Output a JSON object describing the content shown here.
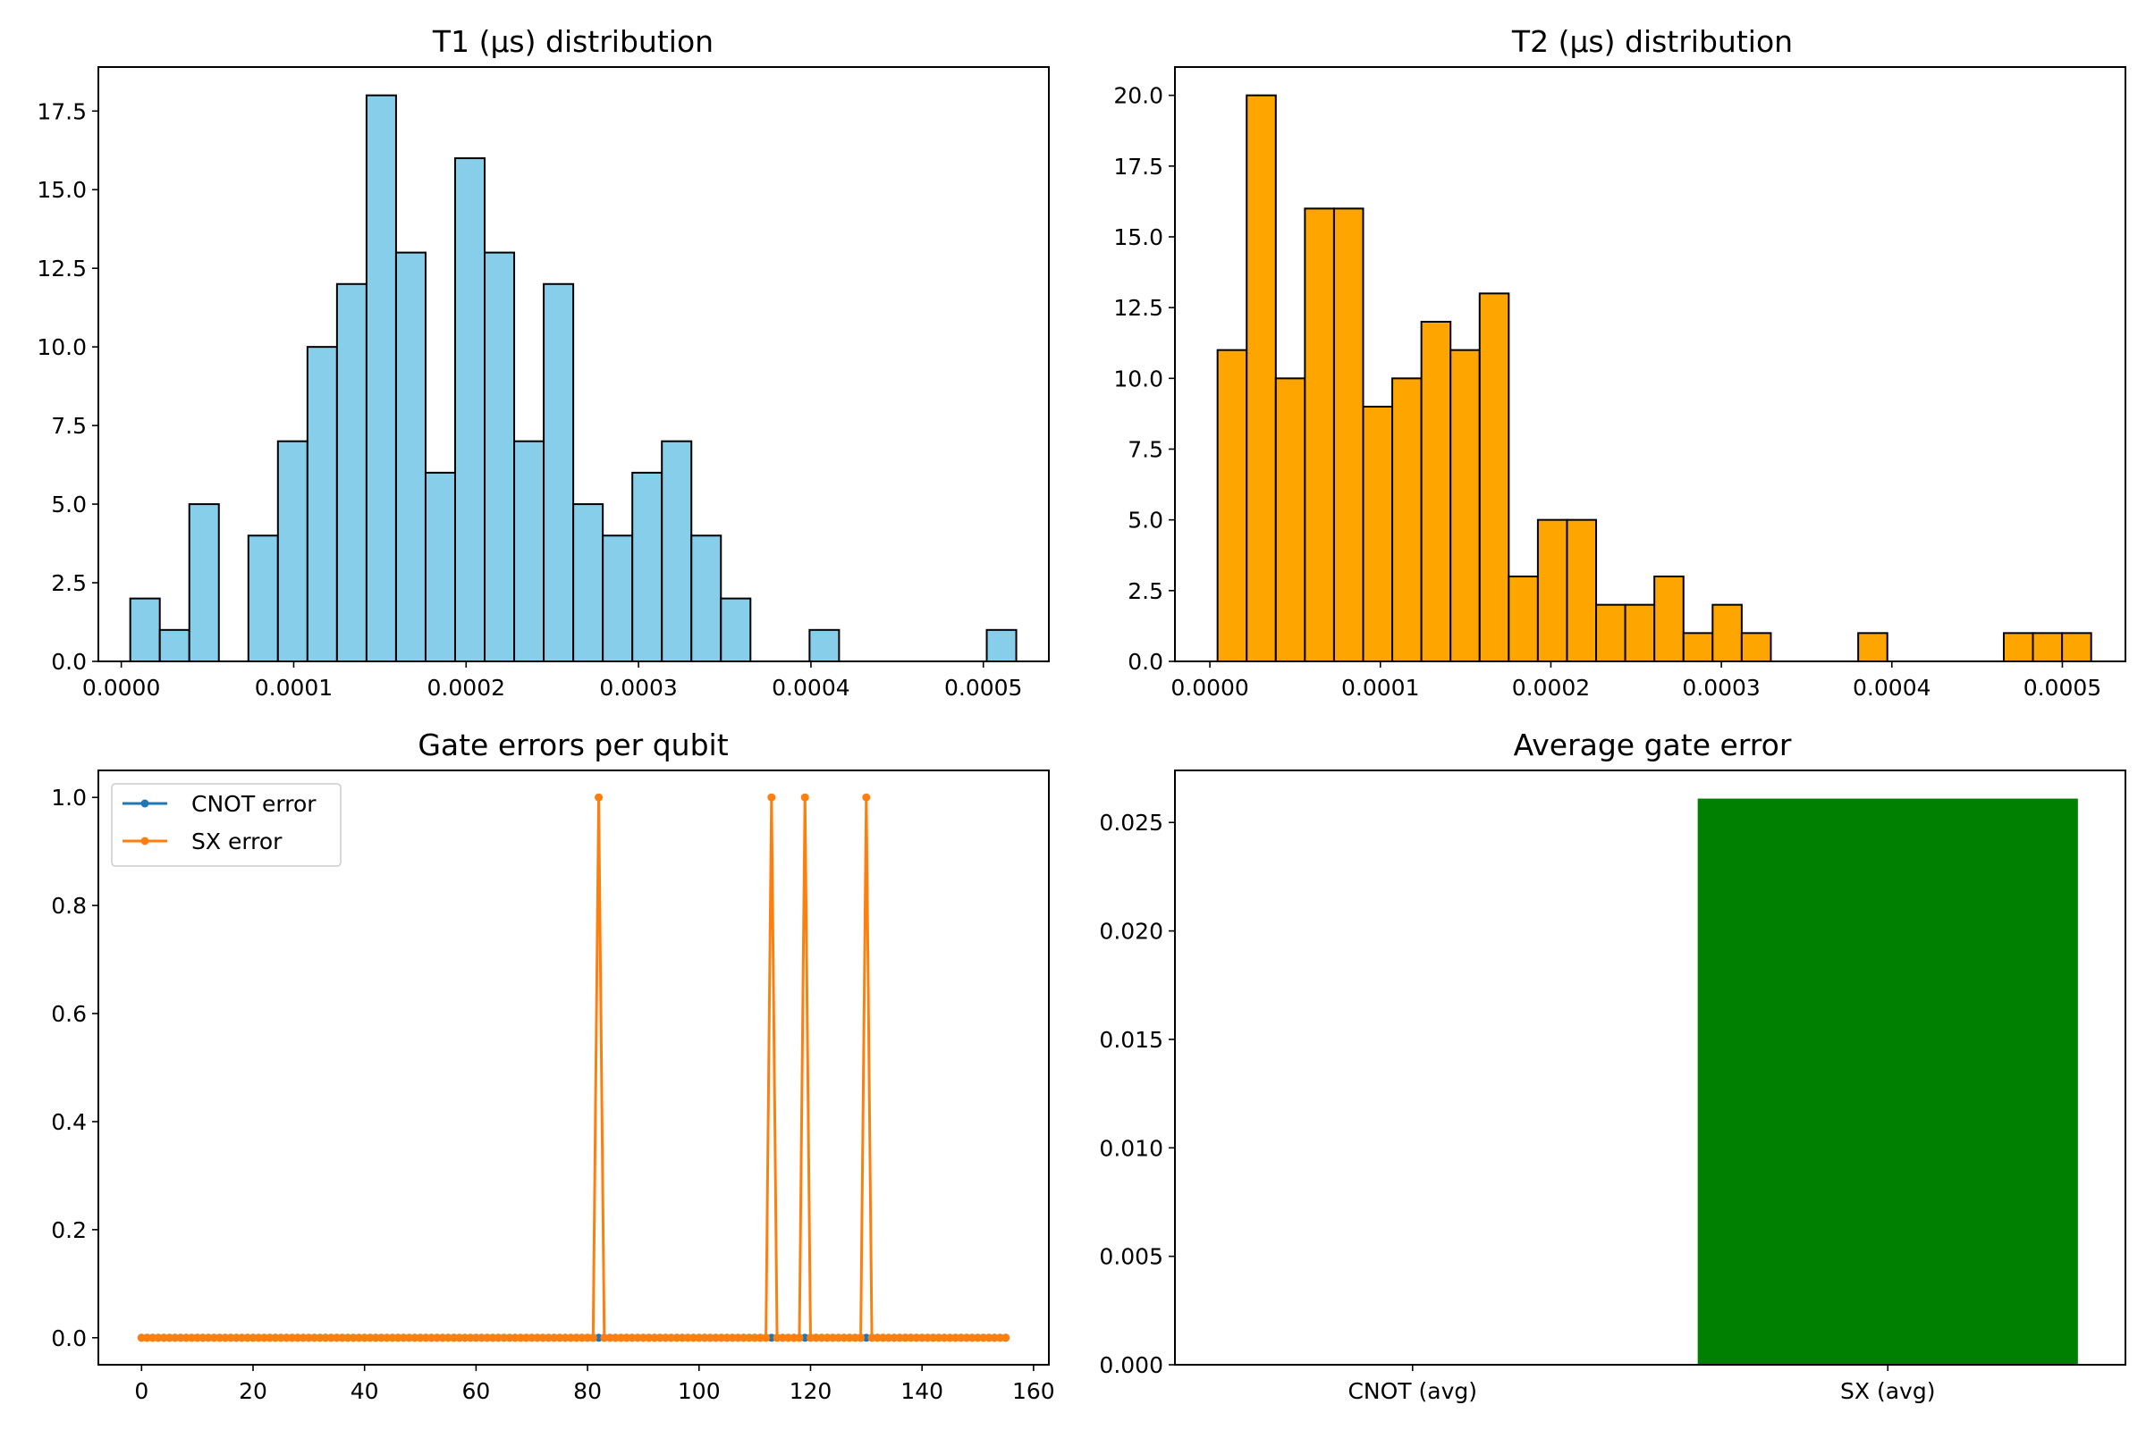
{
  "chart_data": [
    {
      "type": "bar",
      "title": "T1 (µs) distribution",
      "xlabel": "",
      "ylabel": "",
      "xlim": [
        -1.33e-05,
        0.000538
      ],
      "ylim": [
        0,
        18.9
      ],
      "xticks": [
        0.0,
        0.0001,
        0.0002,
        0.0003,
        0.0004,
        0.0005
      ],
      "xtick_labels": [
        "0.0000",
        "0.0001",
        "0.0002",
        "0.0003",
        "0.0004",
        "0.0005"
      ],
      "yticks": [
        0,
        2.5,
        5,
        7.5,
        10,
        12.5,
        15,
        17.5
      ],
      "ytick_labels": [
        "0.0",
        "2.5",
        "5.0",
        "7.5",
        "10.0",
        "12.5",
        "15.0",
        "17.5"
      ],
      "bin_start": 5.2e-06,
      "bin_width": 1.713e-05,
      "counts": [
        2,
        1,
        5,
        0,
        4,
        7,
        10,
        12,
        18,
        13,
        6,
        16,
        13,
        7,
        12,
        5,
        4,
        6,
        7,
        4,
        2,
        0,
        0,
        1,
        0,
        0,
        0,
        0,
        0,
        1
      ],
      "color": "#87ceeb",
      "edgecolor": "#000000"
    },
    {
      "type": "bar",
      "title": "T2 (µs) distribution",
      "xlabel": "",
      "ylabel": "",
      "xlim": [
        -2.05e-05,
        0.000537
      ],
      "ylim": [
        0,
        21
      ],
      "xticks": [
        0.0,
        0.0001,
        0.0002,
        0.0003,
        0.0004,
        0.0005
      ],
      "xtick_labels": [
        "0.0000",
        "0.0001",
        "0.0002",
        "0.0003",
        "0.0004",
        "0.0005"
      ],
      "yticks": [
        0,
        2.5,
        5,
        7.5,
        10,
        12.5,
        15,
        17.5,
        20
      ],
      "ytick_labels": [
        "0.0",
        "2.5",
        "5.0",
        "7.5",
        "10.0",
        "12.5",
        "15.0",
        "17.5",
        "20.0"
      ],
      "bin_start": 4.5e-06,
      "bin_width": 1.708e-05,
      "counts": [
        11,
        20,
        10,
        16,
        16,
        9,
        10,
        12,
        11,
        13,
        3,
        5,
        5,
        2,
        2,
        3,
        1,
        2,
        1,
        0,
        0,
        0,
        1,
        0,
        0,
        0,
        0,
        1,
        1,
        1
      ],
      "color": "#ffa500",
      "edgecolor": "#000000"
    },
    {
      "type": "line",
      "title": "Gate errors per qubit",
      "xlabel": "",
      "ylabel": "",
      "xlim": [
        -7.75,
        162.75
      ],
      "ylim": [
        -0.05,
        1.05
      ],
      "xticks": [
        0,
        20,
        40,
        60,
        80,
        100,
        120,
        140,
        160
      ],
      "xtick_labels": [
        "0",
        "20",
        "40",
        "60",
        "80",
        "100",
        "120",
        "140",
        "160"
      ],
      "yticks": [
        0,
        0.2,
        0.4,
        0.6,
        0.8,
        1.0
      ],
      "ytick_labels": [
        "0.0",
        "0.2",
        "0.4",
        "0.6",
        "0.8",
        "1.0"
      ],
      "x_start": 0,
      "x_end": 155,
      "series": [
        {
          "name": "CNOT error",
          "color": "#1f77b4",
          "baseline": 0.0,
          "spikes": []
        },
        {
          "name": "SX error",
          "color": "#ff7f0e",
          "baseline": 0.0,
          "spikes": [
            [
              82,
              1.0
            ],
            [
              113,
              1.0
            ],
            [
              119,
              1.0
            ],
            [
              130,
              1.0
            ]
          ]
        }
      ],
      "legend": "top-left"
    },
    {
      "type": "bar",
      "title": "Average gate error",
      "xlabel": "",
      "ylabel": "",
      "categories": [
        "CNOT (avg)",
        "SX (avg)"
      ],
      "values": [
        0.0,
        0.0261
      ],
      "bar_color": "#008000",
      "ylim": [
        0,
        0.0274
      ],
      "yticks": [
        0,
        0.005,
        0.01,
        0.015,
        0.02,
        0.025
      ],
      "ytick_labels": [
        "0.000",
        "0.005",
        "0.010",
        "0.015",
        "0.020",
        "0.025"
      ]
    }
  ]
}
